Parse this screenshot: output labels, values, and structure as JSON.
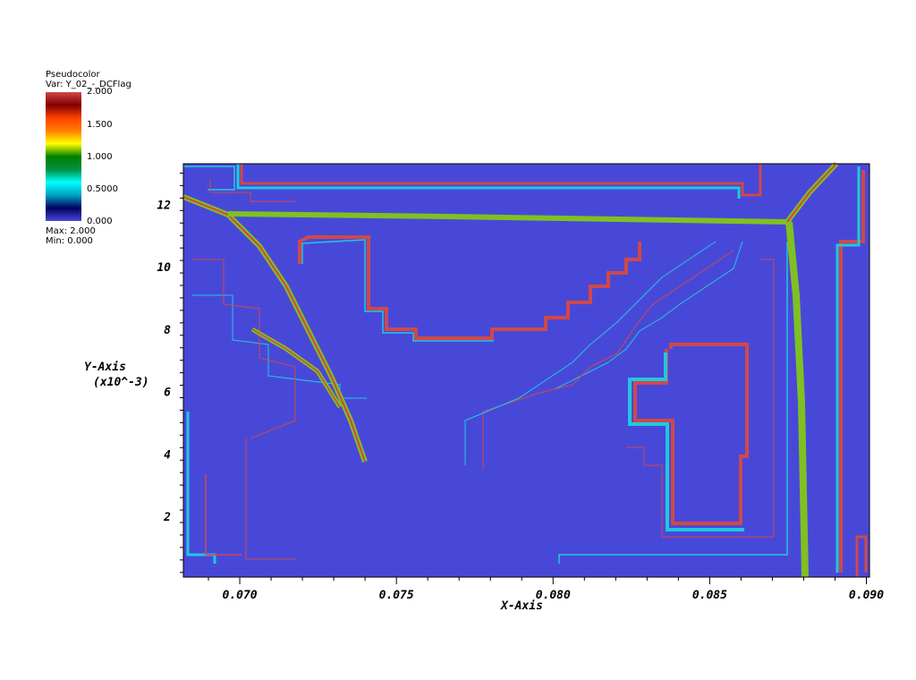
{
  "legend": {
    "plot_type": "Pseudocolor",
    "var_label": "Var: Y_02_-_DCFlag",
    "max_label": "Max:  2.000",
    "min_label": "Min:  0.000",
    "ticks": [
      "2.000",
      "1.500",
      "1.000",
      "0.5000",
      "0.000"
    ],
    "colormap": [
      "#4848d8",
      "#000060",
      "#00a0c0",
      "#00ffff",
      "#009040",
      "#008000",
      "#ffff00",
      "#ff8000",
      "#ff4000",
      "#800000",
      "#d04848"
    ]
  },
  "chart_data": {
    "type": "heatmap",
    "xlabel": "X-Axis",
    "ylabel": "Y-Axis",
    "ylabel_scale": "(x10^-3)",
    "xlim": [
      0.0682,
      0.0901
    ],
    "ylim": [
      0.05,
      13.3
    ],
    "x_ticks": [
      "0.070",
      "0.075",
      "0.080",
      "0.085",
      "0.090"
    ],
    "x_tick_values": [
      0.07,
      0.075,
      0.08,
      0.085,
      0.09
    ],
    "y_ticks": [
      "2",
      "4",
      "6",
      "8",
      "10",
      "12"
    ],
    "y_tick_values": [
      2,
      4,
      6,
      8,
      10,
      12
    ],
    "value_range": [
      0,
      2
    ],
    "colors": {
      "background": "#4848d8",
      "contour_red": "#d04848",
      "contour_cyan": "#20c8e0",
      "front_green": "#80c020"
    }
  }
}
